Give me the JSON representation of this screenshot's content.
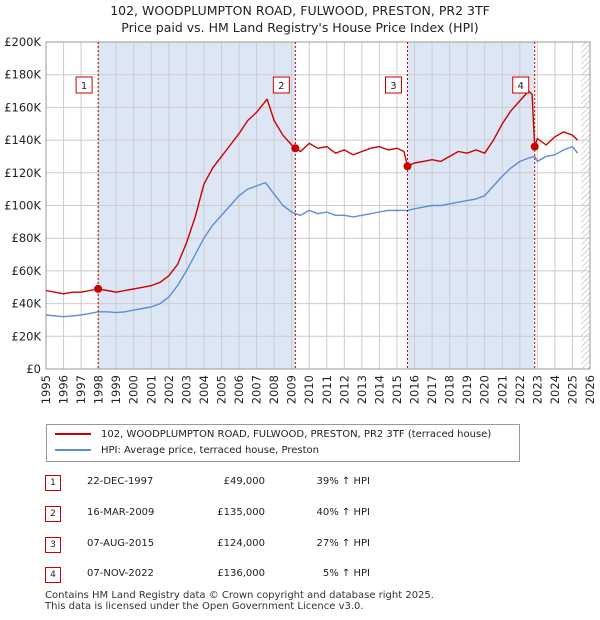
{
  "title_line1": "102, WOODPLUMPTON ROAD, FULWOOD, PRESTON, PR2 3TF",
  "title_line2": "Price paid vs. HM Land Registry's House Price Index (HPI)",
  "colors": {
    "property": "#cc0000",
    "hpi": "#5b8ed6",
    "shade": "#dde6f5",
    "grid": "#cccccc"
  },
  "chart_data": {
    "type": "line",
    "xlim": [
      1995,
      2026
    ],
    "ylim": [
      0,
      200000
    ],
    "y_ticks": [
      0,
      20000,
      40000,
      60000,
      80000,
      100000,
      120000,
      140000,
      160000,
      180000,
      200000
    ],
    "y_tick_labels": [
      "£0",
      "£20K",
      "£40K",
      "£60K",
      "£80K",
      "£100K",
      "£120K",
      "£140K",
      "£160K",
      "£180K",
      "£200K"
    ],
    "x_ticks": [
      1995,
      1996,
      1997,
      1998,
      1999,
      2000,
      2001,
      2002,
      2003,
      2004,
      2005,
      2006,
      2007,
      2008,
      2009,
      2010,
      2011,
      2012,
      2013,
      2014,
      2015,
      2016,
      2017,
      2018,
      2019,
      2020,
      2021,
      2022,
      2023,
      2024,
      2025,
      2026
    ],
    "x_tick_labels": [
      "1995",
      "1996",
      "1997",
      "1998",
      "1999",
      "2000",
      "2001",
      "2002",
      "2003",
      "2004",
      "2005",
      "2006",
      "2007",
      "2008",
      "2009",
      "2010",
      "2011",
      "2012",
      "2013",
      "2014",
      "2015",
      "2016",
      "2017",
      "2018",
      "2019",
      "2020",
      "2021",
      "2022",
      "2023",
      "2024",
      "2025",
      "2026"
    ],
    "shaded_ranges": [
      [
        1997.97,
        2009.21
      ],
      [
        2015.6,
        2022.85
      ]
    ],
    "hatched_from": 2025.5,
    "series": [
      {
        "name": "102, WOODPLUMPTON ROAD, FULWOOD, PRESTON, PR2 3TF (terraced house)",
        "x": [
          1995,
          1995.5,
          1996,
          1996.5,
          1997,
          1997.5,
          1997.97,
          1998.5,
          1999,
          1999.5,
          2000,
          2000.5,
          2001,
          2001.5,
          2002,
          2002.5,
          2003,
          2003.5,
          2004,
          2004.5,
          2005,
          2005.5,
          2006,
          2006.5,
          2007,
          2007.3,
          2007.6,
          2008,
          2008.5,
          2009,
          2009.21,
          2009.5,
          2010,
          2010.5,
          2011,
          2011.5,
          2012,
          2012.5,
          2013,
          2013.5,
          2014,
          2014.5,
          2015,
          2015.4,
          2015.6,
          2016,
          2016.5,
          2017,
          2017.5,
          2018,
          2018.5,
          2019,
          2019.5,
          2020,
          2020.5,
          2021,
          2021.5,
          2022,
          2022.5,
          2022.7,
          2022.85,
          2023,
          2023.5,
          2024,
          2024.5,
          2025,
          2025.3
        ],
        "y": [
          48000,
          47000,
          46000,
          47000,
          47000,
          48000,
          49000,
          48000,
          47000,
          48000,
          49000,
          50000,
          51000,
          53000,
          57000,
          64000,
          77000,
          93000,
          113000,
          123000,
          130000,
          137000,
          144000,
          152000,
          157000,
          161000,
          165000,
          152000,
          143000,
          137000,
          135000,
          133000,
          138000,
          135000,
          136000,
          132000,
          134000,
          131000,
          133000,
          135000,
          136000,
          134000,
          135000,
          133000,
          124000,
          126000,
          127000,
          128000,
          127000,
          130000,
          133000,
          132000,
          134000,
          132000,
          140000,
          150000,
          158000,
          164000,
          170000,
          168000,
          136000,
          141000,
          137000,
          142000,
          145000,
          143000,
          140000
        ]
      },
      {
        "name": "HPI: Average price, terraced house, Preston",
        "x": [
          1995,
          1995.5,
          1996,
          1996.5,
          1997,
          1997.5,
          1997.97,
          1998.5,
          1999,
          1999.5,
          2000,
          2000.5,
          2001,
          2001.5,
          2002,
          2002.5,
          2003,
          2003.5,
          2004,
          2004.5,
          2005,
          2005.5,
          2006,
          2006.5,
          2007,
          2007.5,
          2008,
          2008.5,
          2009,
          2009.21,
          2009.5,
          2010,
          2010.5,
          2011,
          2011.5,
          2012,
          2012.5,
          2013,
          2013.5,
          2014,
          2014.5,
          2015,
          2015.6,
          2016,
          2016.5,
          2017,
          2017.5,
          2018,
          2018.5,
          2019,
          2019.5,
          2020,
          2020.5,
          2021,
          2021.5,
          2022,
          2022.5,
          2022.85,
          2023,
          2023.5,
          2024,
          2024.5,
          2025,
          2025.3
        ],
        "y": [
          33000,
          32500,
          32000,
          32500,
          33000,
          34000,
          35000,
          35000,
          34500,
          35000,
          36000,
          37000,
          38000,
          40000,
          44000,
          51000,
          60000,
          70000,
          80000,
          88000,
          94000,
          100000,
          106000,
          110000,
          112000,
          114000,
          107000,
          100000,
          96000,
          95000,
          94000,
          97000,
          95000,
          96000,
          94000,
          94000,
          93000,
          94000,
          95000,
          96000,
          97000,
          97000,
          97000,
          98000,
          99000,
          100000,
          100000,
          101000,
          102000,
          103000,
          104000,
          106000,
          112000,
          118000,
          123000,
          127000,
          129000,
          130000,
          127000,
          130000,
          131000,
          134000,
          136000,
          132000
        ]
      }
    ],
    "markers": [
      {
        "label": "1",
        "x": 1997.97,
        "y": 49000
      },
      {
        "label": "2",
        "x": 2009.21,
        "y": 135000
      },
      {
        "label": "3",
        "x": 2015.6,
        "y": 124000
      },
      {
        "label": "4",
        "x": 2022.85,
        "y": 136000
      }
    ]
  },
  "legend": {
    "property_label": "102, WOODPLUMPTON ROAD, FULWOOD, PRESTON, PR2 3TF (terraced house)",
    "hpi_label": "HPI: Average price, terraced house, Preston"
  },
  "sales": [
    {
      "num": "1",
      "date": "22-DEC-1997",
      "price": "£49,000",
      "hpi": "39% ↑ HPI"
    },
    {
      "num": "2",
      "date": "16-MAR-2009",
      "price": "£135,000",
      "hpi": "40% ↑ HPI"
    },
    {
      "num": "3",
      "date": "07-AUG-2015",
      "price": "£124,000",
      "hpi": "27% ↑ HPI"
    },
    {
      "num": "4",
      "date": "07-NOV-2022",
      "price": "£136,000",
      "hpi": "5% ↑ HPI"
    }
  ],
  "footer_line1": "Contains HM Land Registry data © Crown copyright and database right 2025.",
  "footer_line2": "This data is licensed under the Open Government Licence v3.0."
}
